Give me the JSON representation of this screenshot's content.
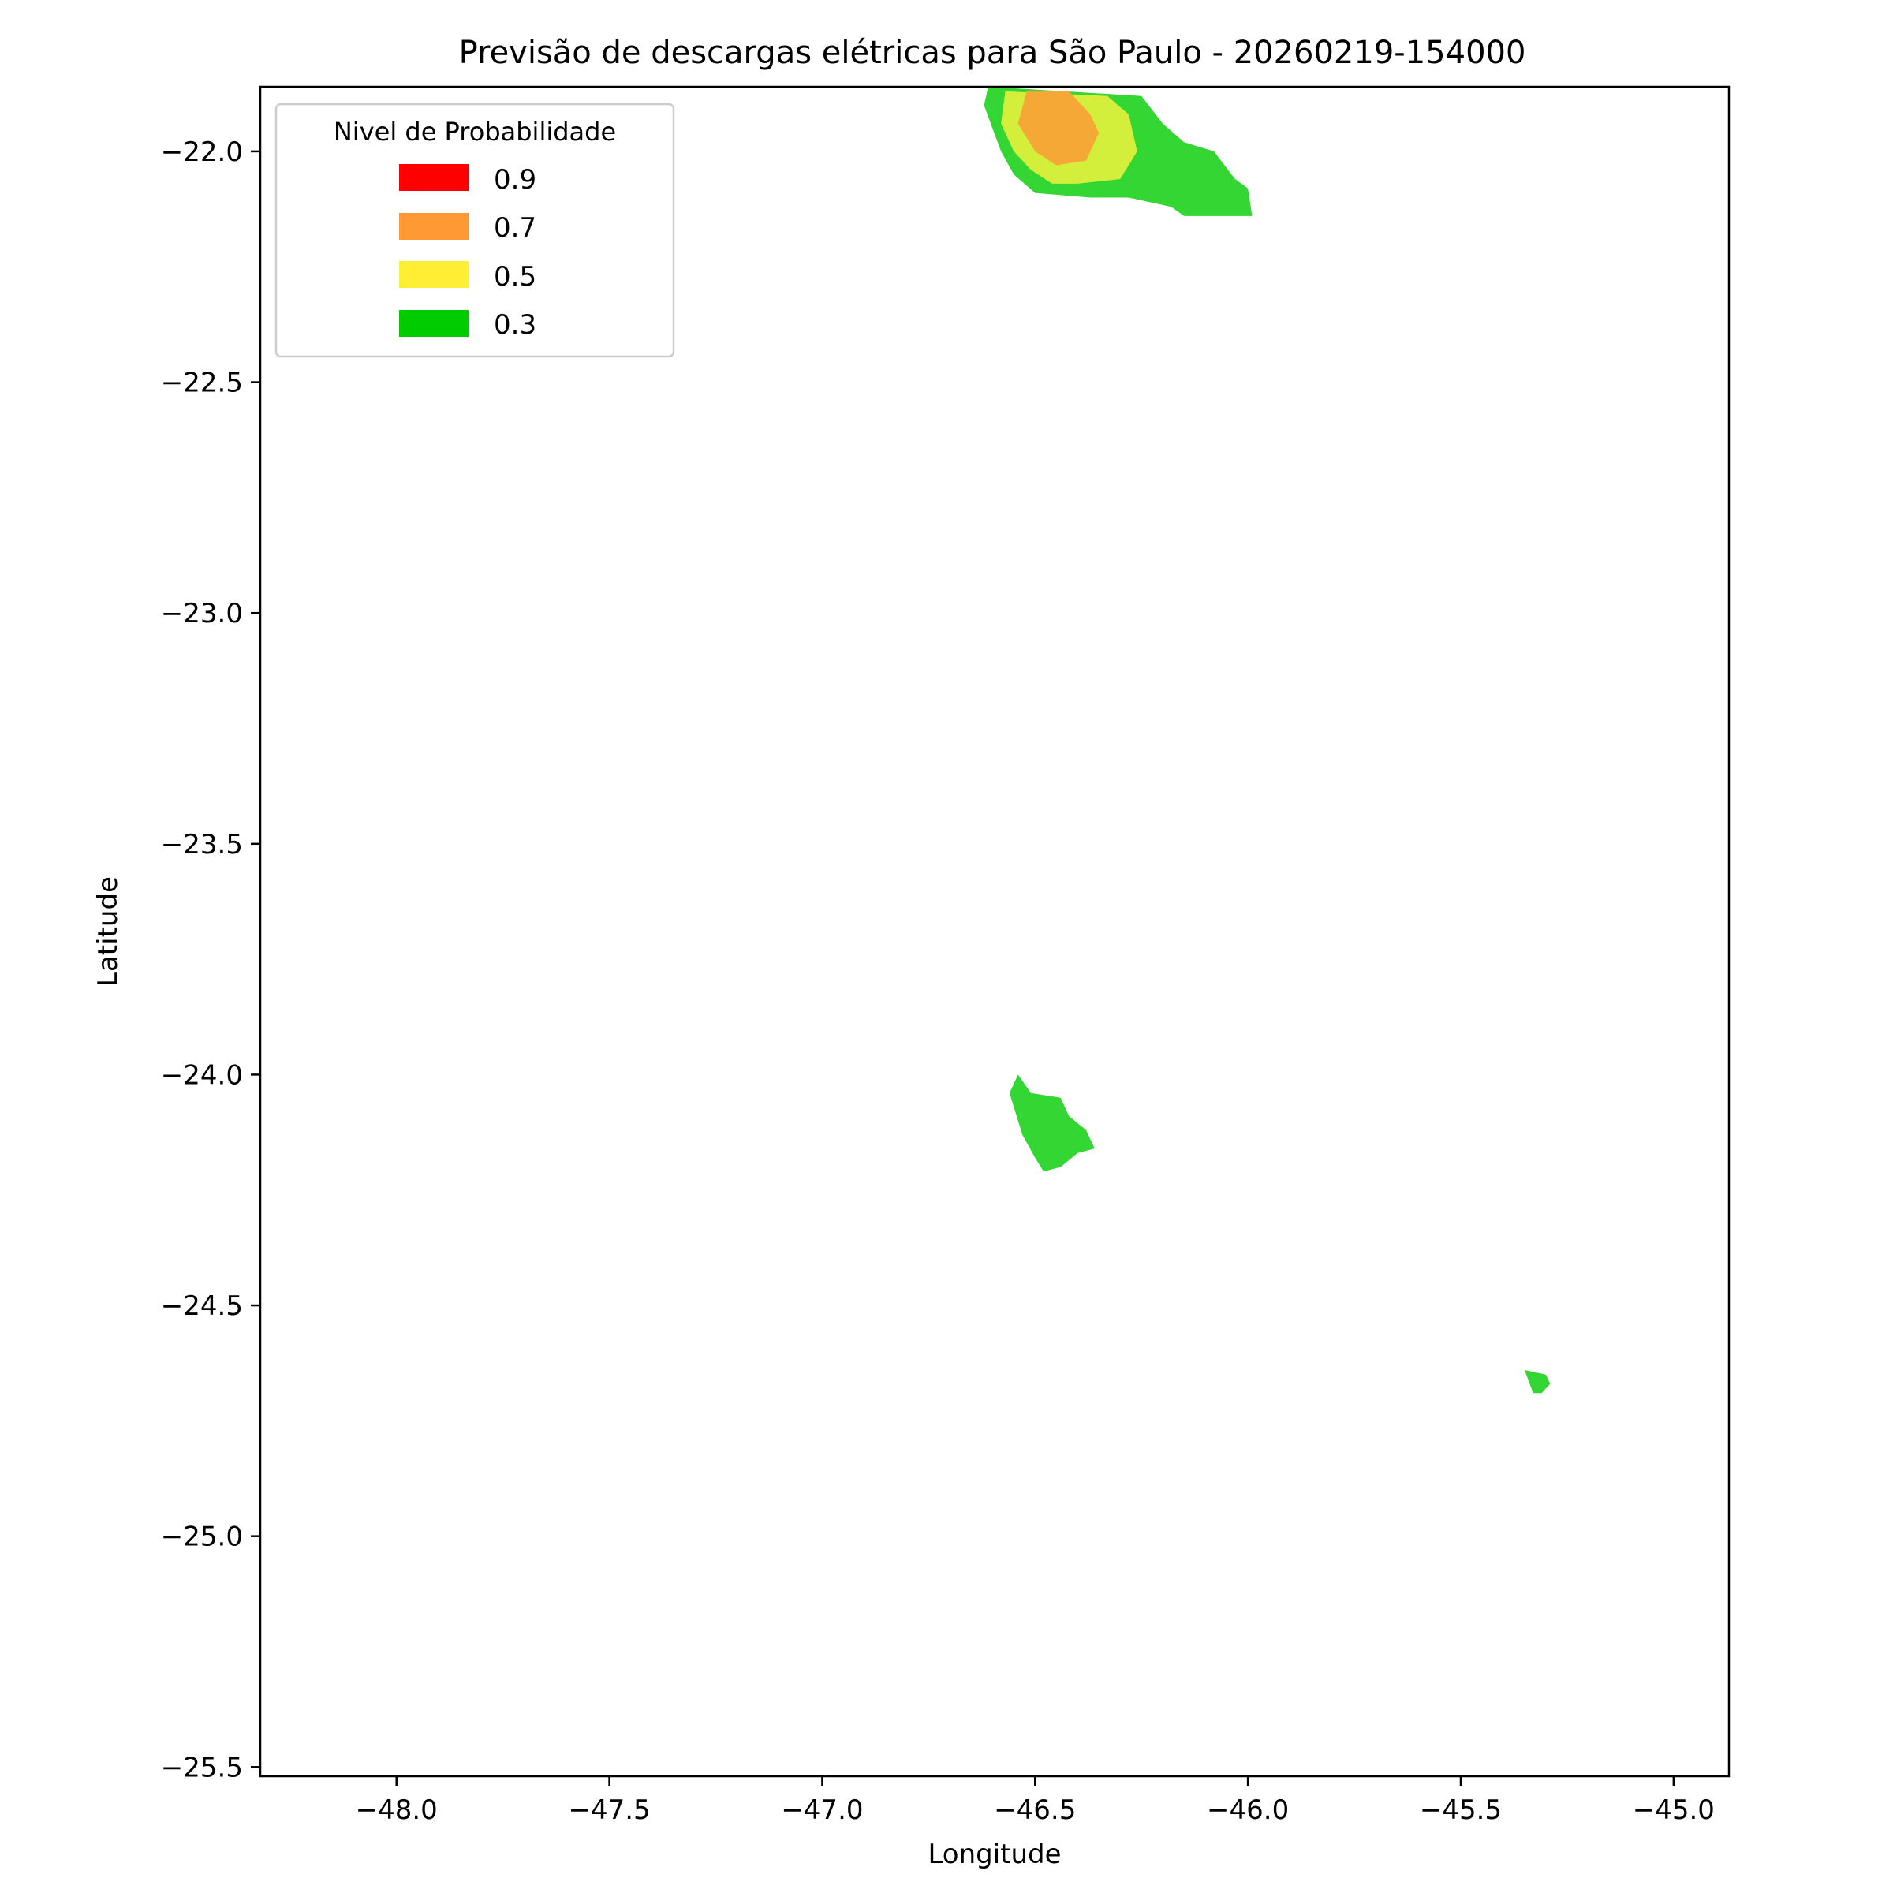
{
  "chart_data": {
    "type": "area",
    "title": "Previsão de descargas elétricas para São Paulo - 20260219-154000",
    "xlabel": "Longitude",
    "ylabel": "Latitude",
    "xlim": [
      -48.32,
      -44.87
    ],
    "ylim": [
      -25.52,
      -21.86
    ],
    "xticks": [
      -48.0,
      -47.5,
      -47.0,
      -46.5,
      -46.0,
      -45.5,
      -45.0
    ],
    "yticks": [
      -22.0,
      -22.5,
      -23.0,
      -23.5,
      -24.0,
      -24.5,
      -25.0,
      -25.5
    ],
    "xtick_labels": [
      "−48.0",
      "−47.5",
      "−47.0",
      "−46.5",
      "−46.0",
      "−45.5",
      "−45.0"
    ],
    "ytick_labels": [
      "−22.0",
      "−22.5",
      "−23.0",
      "−23.5",
      "−24.0",
      "−24.5",
      "−25.0",
      "−25.5"
    ],
    "grid": false,
    "legend": {
      "title": "Nivel de Probabilidade",
      "placement": "upper-left",
      "entries": [
        {
          "label": "0.9",
          "color": "#ff0000"
        },
        {
          "label": "0.7",
          "color": "#ff9933"
        },
        {
          "label": "0.5",
          "color": "#ffee33"
        },
        {
          "label": "0.3",
          "color": "#00cc00"
        }
      ]
    },
    "regions": [
      {
        "level": "0.3",
        "color": "#33d633",
        "coords": [
          [
            -46.61,
            -21.86
          ],
          [
            -46.25,
            -21.88
          ],
          [
            -46.2,
            -21.94
          ],
          [
            -46.15,
            -21.98
          ],
          [
            -46.08,
            -22.0
          ],
          [
            -46.03,
            -22.06
          ],
          [
            -46.0,
            -22.08
          ],
          [
            -45.99,
            -22.14
          ],
          [
            -46.15,
            -22.14
          ],
          [
            -46.18,
            -22.12
          ],
          [
            -46.28,
            -22.1
          ],
          [
            -46.37,
            -22.1
          ],
          [
            -46.5,
            -22.09
          ],
          [
            -46.55,
            -22.05
          ],
          [
            -46.58,
            -22.0
          ],
          [
            -46.6,
            -21.95
          ],
          [
            -46.62,
            -21.9
          ]
        ]
      },
      {
        "level": "0.5",
        "color": "#d4ee3c",
        "coords": [
          [
            -46.57,
            -21.87
          ],
          [
            -46.33,
            -21.88
          ],
          [
            -46.28,
            -21.92
          ],
          [
            -46.26,
            -22.0
          ],
          [
            -46.3,
            -22.06
          ],
          [
            -46.4,
            -22.07
          ],
          [
            -46.46,
            -22.07
          ],
          [
            -46.51,
            -22.04
          ],
          [
            -46.55,
            -22.0
          ],
          [
            -46.58,
            -21.94
          ]
        ]
      },
      {
        "level": "0.7",
        "color": "#f6a836",
        "coords": [
          [
            -46.52,
            -21.87
          ],
          [
            -46.42,
            -21.87
          ],
          [
            -46.37,
            -21.92
          ],
          [
            -46.35,
            -21.96
          ],
          [
            -46.38,
            -22.02
          ],
          [
            -46.45,
            -22.03
          ],
          [
            -46.5,
            -22.0
          ],
          [
            -46.54,
            -21.94
          ]
        ]
      },
      {
        "level": "0.3",
        "color": "#33d633",
        "coords": [
          [
            -46.54,
            -24.0
          ],
          [
            -46.51,
            -24.04
          ],
          [
            -46.44,
            -24.05
          ],
          [
            -46.42,
            -24.09
          ],
          [
            -46.38,
            -24.12
          ],
          [
            -46.36,
            -24.16
          ],
          [
            -46.4,
            -24.17
          ],
          [
            -46.44,
            -24.2
          ],
          [
            -46.48,
            -24.21
          ],
          [
            -46.5,
            -24.18
          ],
          [
            -46.53,
            -24.13
          ],
          [
            -46.56,
            -24.04
          ]
        ]
      },
      {
        "level": "0.3",
        "color": "#33d633",
        "coords": [
          [
            -45.35,
            -24.64
          ],
          [
            -45.3,
            -24.65
          ],
          [
            -45.29,
            -24.67
          ],
          [
            -45.31,
            -24.69
          ],
          [
            -45.33,
            -24.69
          ]
        ]
      }
    ]
  }
}
